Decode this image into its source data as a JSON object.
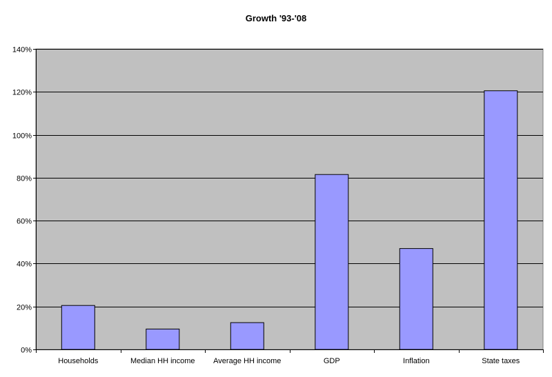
{
  "colors": {
    "plot_bg": "#c0c0c0",
    "bar_fill": "#9999ff",
    "bar_stroke": "#000000",
    "gridline": "#000000"
  },
  "chart_data": {
    "type": "bar",
    "title": "Growth '93-'08",
    "xlabel": "",
    "ylabel": "",
    "categories": [
      "Households",
      "Median HH income",
      "Average HH income",
      "GDP",
      "Inflation",
      "State taxes"
    ],
    "values": [
      20.5,
      9.5,
      12.5,
      81.5,
      47,
      120.5
    ],
    "value_format": "percent",
    "ylim": [
      0,
      140
    ],
    "yticks": [
      0,
      20,
      40,
      60,
      80,
      100,
      120,
      140
    ],
    "ytick_labels": [
      "0%",
      "20%",
      "40%",
      "60%",
      "80%",
      "100%",
      "120%",
      "140%"
    ],
    "grid": true,
    "legend": "none"
  }
}
